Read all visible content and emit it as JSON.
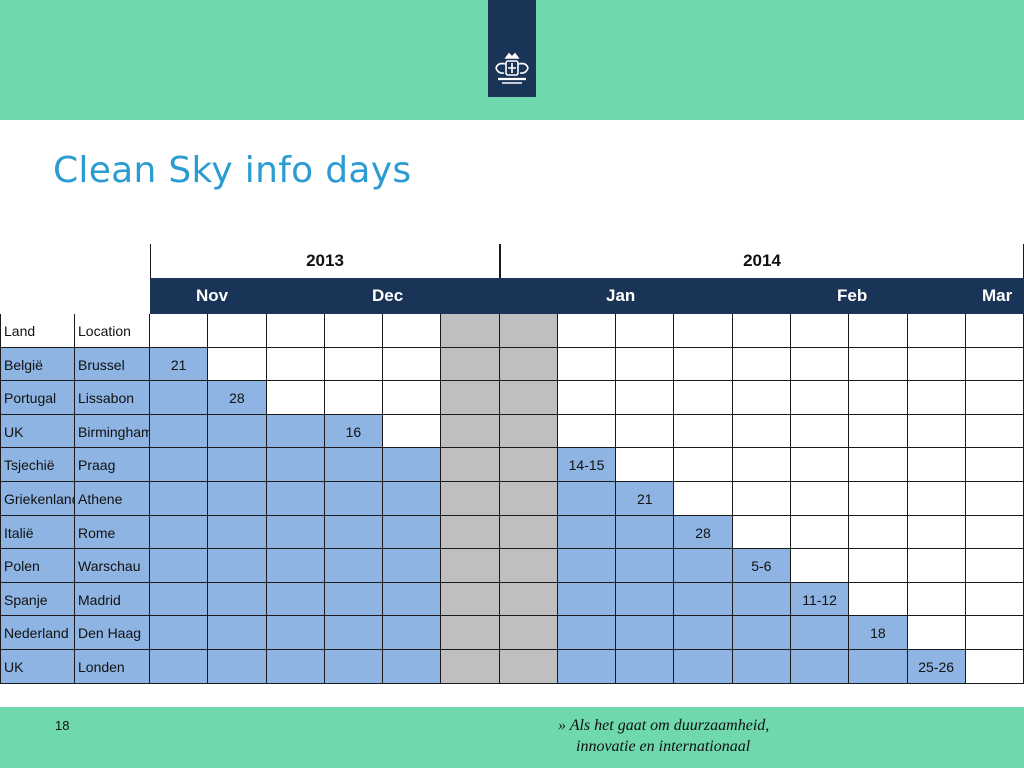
{
  "header": {
    "emblem": "crest-emblem"
  },
  "title": "Clean Sky info days",
  "table": {
    "years": [
      "2013",
      "2014"
    ],
    "months": [
      "Nov",
      "Dec",
      "Jan",
      "Feb",
      "Mar"
    ],
    "header_labels": [
      "Land",
      "Location"
    ],
    "rows": [
      {
        "land": "België",
        "location": "Brussel",
        "date": "21",
        "col": 0
      },
      {
        "land": "Portugal",
        "location": "Lissabon",
        "date": "28",
        "col": 1
      },
      {
        "land": "UK",
        "location": "Birmingham",
        "date": "16",
        "col": 3
      },
      {
        "land": "Tsjechië",
        "location": "Praag",
        "date": "14-15",
        "col": 7
      },
      {
        "land": "Griekenland",
        "location": "Athene",
        "date": "21",
        "col": 8
      },
      {
        "land": "Italië",
        "location": "Rome",
        "date": "28",
        "col": 9
      },
      {
        "land": "Polen",
        "location": "Warschau",
        "date": "5-6",
        "col": 10
      },
      {
        "land": "Spanje",
        "location": "Madrid",
        "date": "11-12",
        "col": 11
      },
      {
        "land": "Nederland",
        "location": "Den Haag",
        "date": "18",
        "col": 12
      },
      {
        "land": "UK",
        "location": "Londen",
        "date": "25-26",
        "col": 13
      }
    ],
    "week_columns": 15,
    "holiday_columns": [
      5,
      6
    ],
    "colors": {
      "scheduled": "#8db4e2",
      "holiday": "#bfbfbf",
      "month_bar": "#1a3458"
    }
  },
  "footer": {
    "page_number": "18",
    "tagline_line1": "» Als het gaat om duurzaamheid,",
    "tagline_line2": "innovatie en internationaal"
  }
}
